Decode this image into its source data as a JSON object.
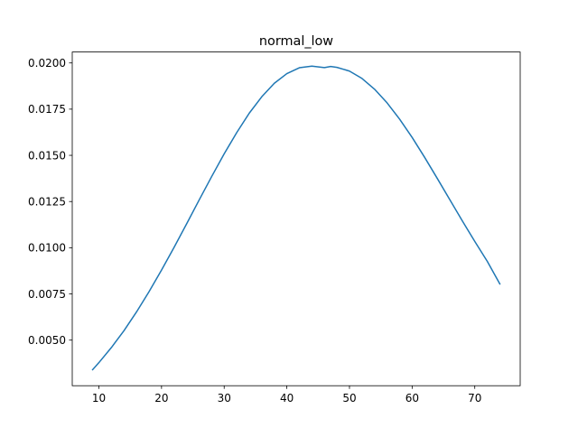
{
  "chart_data": {
    "type": "line",
    "title": "normal_low",
    "xlabel": "",
    "ylabel": "",
    "xlim": [
      5.75,
      77.25
    ],
    "ylim": [
      0.002533,
      0.020592
    ],
    "x_ticks": [
      10,
      20,
      30,
      40,
      50,
      60,
      70
    ],
    "x_tick_labels": [
      "10",
      "20",
      "30",
      "40",
      "50",
      "60",
      "70"
    ],
    "y_ticks": [
      0.005,
      0.0075,
      0.01,
      0.0125,
      0.015,
      0.0175,
      0.02
    ],
    "y_tick_labels": [
      "0.0050",
      "0.0075",
      "0.0100",
      "0.0125",
      "0.0150",
      "0.0175",
      "0.0200"
    ],
    "grid": false,
    "legend": "none",
    "series": [
      {
        "color": "#1f77b4",
        "x": [
          9,
          10,
          12,
          14,
          16,
          18,
          20,
          22,
          24,
          26,
          28,
          30,
          32,
          34,
          36,
          38,
          40,
          42,
          44,
          46,
          47,
          48,
          50,
          52,
          54,
          56,
          58,
          60,
          62,
          64,
          66,
          68,
          70,
          72,
          74
        ],
        "y": [
          0.0034,
          0.00378,
          0.0046,
          0.00551,
          0.00652,
          0.00762,
          0.00879,
          0.01002,
          0.01129,
          0.01258,
          0.01385,
          0.01508,
          0.01623,
          0.01728,
          0.01817,
          0.0189,
          0.01942,
          0.01974,
          0.01983,
          0.01975,
          0.01981,
          0.01976,
          0.01956,
          0.01916,
          0.01858,
          0.01784,
          0.01696,
          0.01597,
          0.01489,
          0.01376,
          0.01261,
          0.01146,
          0.01034,
          0.00926,
          0.00804
        ]
      }
    ]
  }
}
